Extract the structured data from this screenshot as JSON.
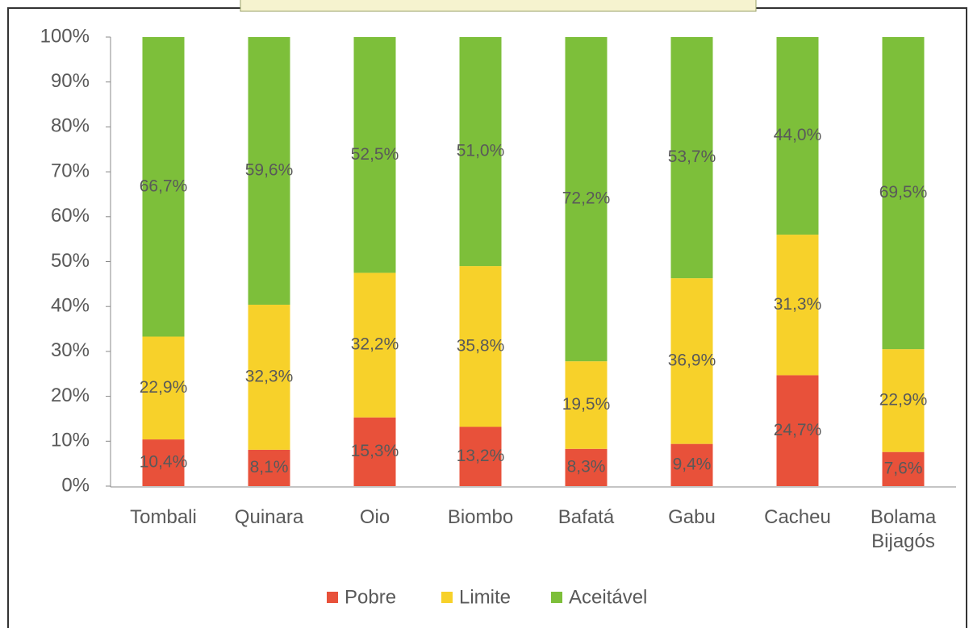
{
  "chart_data": {
    "type": "stacked_bar",
    "categories": [
      "Tombali",
      "Quinara",
      "Oio",
      "Biombo",
      "Bafatá",
      "Gabu",
      "Cacheu",
      "Bolama Bijagós"
    ],
    "series": [
      {
        "name": "Pobre",
        "color": "#e8513a",
        "values": [
          10.4,
          8.1,
          15.3,
          13.2,
          8.3,
          9.4,
          24.7,
          7.6
        ],
        "value_labels": [
          "10,4%",
          "8,1%",
          "15,3%",
          "13,2%",
          "8,3%",
          "9,4%",
          "24,7%",
          "7,6%"
        ]
      },
      {
        "name": "Limite",
        "color": "#f7d12a",
        "values": [
          22.9,
          32.3,
          32.2,
          35.8,
          19.5,
          36.9,
          31.3,
          22.9
        ],
        "value_labels": [
          "22,9%",
          "32,3%",
          "32,2%",
          "35,8%",
          "19,5%",
          "36,9%",
          "31,3%",
          "22,9%"
        ]
      },
      {
        "name": "Aceitável",
        "color": "#7dbf3a",
        "values": [
          66.7,
          59.6,
          52.5,
          51.0,
          72.2,
          53.7,
          44.0,
          69.5
        ],
        "value_labels": [
          "66,7%",
          "59,6%",
          "52,5%",
          "51,0%",
          "72,2%",
          "53,7%",
          "44,0%",
          "69,5%"
        ]
      }
    ],
    "ylim": [
      0,
      100
    ],
    "yticks": [
      {
        "value": 0,
        "label": "0%"
      },
      {
        "value": 10,
        "label": "10%"
      },
      {
        "value": 20,
        "label": "20%"
      },
      {
        "value": 30,
        "label": "30%"
      },
      {
        "value": 40,
        "label": "40%"
      },
      {
        "value": 50,
        "label": "50%"
      },
      {
        "value": 60,
        "label": "60%"
      },
      {
        "value": 70,
        "label": "70%"
      },
      {
        "value": 80,
        "label": "80%"
      },
      {
        "value": 90,
        "label": "90%"
      },
      {
        "value": 100,
        "label": "100%"
      }
    ],
    "legend": "bottom"
  }
}
